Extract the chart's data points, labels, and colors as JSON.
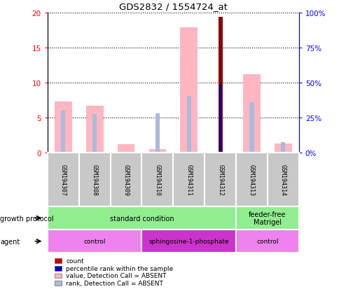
{
  "title": "GDS2832 / 1554724_at",
  "samples": [
    "GSM194307",
    "GSM194308",
    "GSM194309",
    "GSM194310",
    "GSM194311",
    "GSM194312",
    "GSM194313",
    "GSM194314"
  ],
  "value_absent": [
    7.3,
    6.7,
    1.2,
    0.5,
    17.9,
    0.0,
    11.2,
    1.3
  ],
  "rank_absent": [
    6.0,
    5.5,
    0.0,
    5.6,
    8.1,
    0.0,
    7.2,
    1.5
  ],
  "count": [
    0.0,
    0.0,
    0.0,
    0.0,
    0.0,
    19.4,
    0.0,
    0.0
  ],
  "percentile_rank": [
    0.0,
    0.0,
    0.0,
    0.0,
    0.0,
    49.0,
    0.0,
    0.0
  ],
  "ylim_left": [
    0,
    20
  ],
  "ylim_right": [
    0,
    100
  ],
  "yticks_left": [
    0,
    5,
    10,
    15,
    20
  ],
  "yticks_right": [
    0,
    25,
    50,
    75,
    100
  ],
  "ytick_labels_right": [
    "0%",
    "25%",
    "50%",
    "75%",
    "100%"
  ],
  "growth_protocol_groups": [
    {
      "label": "standard condition",
      "start": 0,
      "end": 6
    },
    {
      "label": "feeder-free\nMatrigel",
      "start": 6,
      "end": 8
    }
  ],
  "agent_groups": [
    {
      "label": "control",
      "start": 0,
      "end": 3,
      "color": "#EE82EE"
    },
    {
      "label": "sphingosine-1-phosphate",
      "start": 3,
      "end": 6,
      "color": "#CC33CC"
    },
    {
      "label": "control",
      "start": 6,
      "end": 8,
      "color": "#EE82EE"
    }
  ],
  "color_count": "#8B0000",
  "color_percentile": "#0000AA",
  "color_value_absent": "#FFB6C1",
  "color_rank_absent": "#AABBDD",
  "color_growth_protocol": "#90EE90",
  "legend_items": [
    {
      "label": "count",
      "color": "#CC0000"
    },
    {
      "label": "percentile rank within the sample",
      "color": "#0000CC"
    },
    {
      "label": "value, Detection Call = ABSENT",
      "color": "#FFB6C1"
    },
    {
      "label": "rank, Detection Call = ABSENT",
      "color": "#AABBDD"
    }
  ]
}
